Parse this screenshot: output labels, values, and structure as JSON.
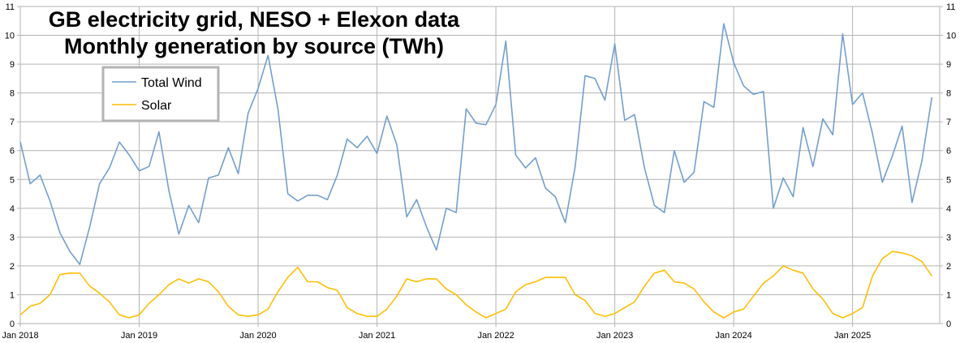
{
  "chart_data": {
    "type": "line",
    "title": "GB electricity grid, NESO + Elexon data",
    "subtitle": "Monthly generation by source (TWh)",
    "xlabel": "",
    "ylabel": "",
    "ylim": [
      0,
      11
    ],
    "yticks": [
      0,
      1,
      2,
      3,
      4,
      5,
      6,
      7,
      8,
      9,
      10,
      11
    ],
    "x_start": "Jan 2018",
    "x_tick_labels": [
      "Jan 2018",
      "Jan 2019",
      "Jan 2020",
      "Jan 2021",
      "Jan 2022",
      "Jan 2023",
      "Jan 2024",
      "Jan 2025"
    ],
    "grid": true,
    "legend_position": "top-left",
    "series": [
      {
        "name": "Total Wind",
        "color": "#729fcf",
        "values": [
          6.3,
          4.85,
          5.15,
          4.25,
          3.15,
          2.5,
          2.05,
          3.35,
          4.85,
          5.4,
          6.3,
          5.85,
          5.3,
          5.45,
          6.65,
          4.6,
          3.1,
          4.1,
          3.5,
          5.05,
          5.15,
          6.1,
          5.2,
          7.3,
          8.15,
          9.3,
          7.45,
          4.5,
          4.25,
          4.45,
          4.45,
          4.3,
          5.15,
          6.4,
          6.1,
          6.5,
          5.9,
          7.2,
          6.2,
          3.7,
          4.3,
          3.35,
          2.55,
          4.0,
          3.85,
          7.45,
          6.95,
          6.9,
          7.6,
          9.8,
          5.85,
          5.4,
          5.75,
          4.7,
          4.4,
          3.5,
          5.45,
          8.6,
          8.5,
          7.75,
          9.7,
          7.05,
          7.25,
          5.4,
          4.1,
          3.85,
          6.0,
          4.9,
          5.25,
          7.7,
          7.5,
          10.4,
          9.05,
          8.25,
          7.95,
          8.05,
          4.0,
          5.05,
          4.4,
          6.8,
          5.45,
          7.1,
          6.55,
          10.05,
          7.6,
          8.0,
          6.6,
          4.9,
          5.8,
          6.85,
          4.2,
          5.65,
          7.85
        ]
      },
      {
        "name": "Solar",
        "color": "#ffbf00",
        "values": [
          0.3,
          0.6,
          0.7,
          1.0,
          1.7,
          1.75,
          1.75,
          1.3,
          1.05,
          0.75,
          0.3,
          0.2,
          0.3,
          0.7,
          1.0,
          1.35,
          1.55,
          1.4,
          1.55,
          1.45,
          1.1,
          0.6,
          0.3,
          0.25,
          0.3,
          0.5,
          1.1,
          1.6,
          1.95,
          1.45,
          1.45,
          1.25,
          1.15,
          0.55,
          0.35,
          0.25,
          0.25,
          0.5,
          0.95,
          1.55,
          1.45,
          1.55,
          1.55,
          1.2,
          1.0,
          0.65,
          0.4,
          0.2,
          0.35,
          0.5,
          1.1,
          1.35,
          1.45,
          1.6,
          1.6,
          1.6,
          1.0,
          0.8,
          0.35,
          0.25,
          0.35,
          0.55,
          0.75,
          1.3,
          1.75,
          1.85,
          1.45,
          1.4,
          1.2,
          0.75,
          0.4,
          0.2,
          0.4,
          0.5,
          0.95,
          1.4,
          1.65,
          2.0,
          1.85,
          1.75,
          1.2,
          0.85,
          0.35,
          0.2,
          0.35,
          0.55,
          1.65,
          2.25,
          2.5,
          2.45,
          2.35,
          2.15,
          1.65
        ]
      }
    ]
  }
}
